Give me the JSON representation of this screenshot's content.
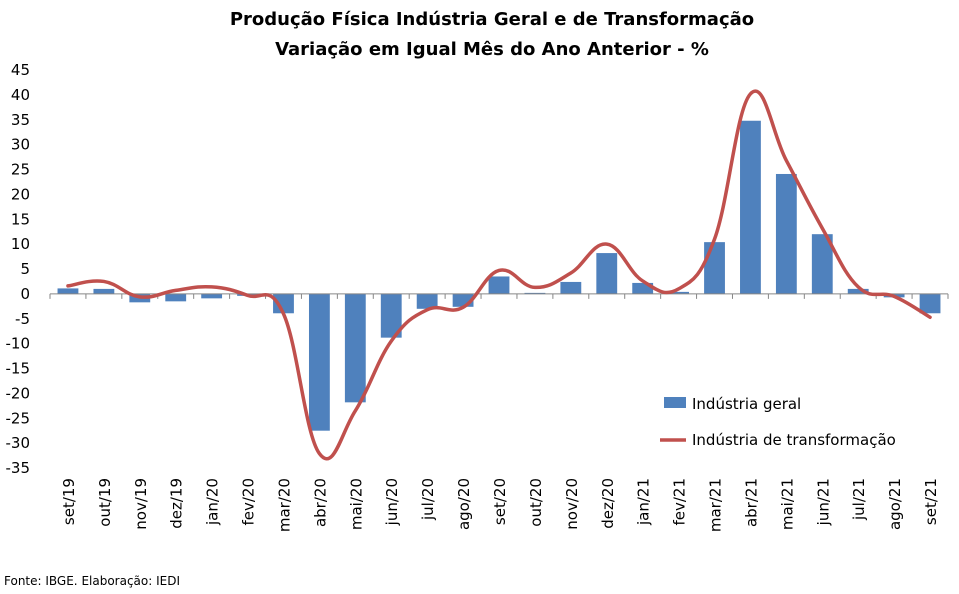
{
  "chart_data": {
    "type": "bar",
    "title": "Produção Física Indústria Geral e de Transformação",
    "subtitle": "Variação em Igual Mês do Ano Anterior - %",
    "categories": [
      "set/19",
      "out/19",
      "nov/19",
      "dez/19",
      "jan/20",
      "fev/20",
      "mar/20",
      "abr/20",
      "mai/20",
      "jun/20",
      "jul/20",
      "ago/20",
      "set/20",
      "out/20",
      "nov/20",
      "dez/20",
      "jan/21",
      "fev/21",
      "mar/21",
      "abr/21",
      "mai/21",
      "jun/21",
      "jul/21",
      "ago/21",
      "set/21"
    ],
    "series": [
      {
        "name": "Indústria geral",
        "kind": "bar",
        "color": "#4F81BD",
        "values": [
          1.1,
          1.0,
          -1.7,
          -1.5,
          -0.9,
          -0.4,
          -3.9,
          -27.5,
          -21.8,
          -8.8,
          -3.0,
          -2.6,
          3.5,
          0.2,
          2.4,
          8.2,
          2.2,
          0.4,
          10.4,
          34.8,
          24.1,
          12.0,
          1.0,
          -0.7,
          -3.9
        ]
      },
      {
        "name": "Indústria de transformação",
        "kind": "line",
        "color": "#C0504D",
        "values": [
          1.6,
          2.5,
          -0.6,
          0.7,
          1.4,
          -0.3,
          -4.0,
          -32.1,
          -23.5,
          -9.5,
          -3.2,
          -2.7,
          4.7,
          1.3,
          4.2,
          10.0,
          2.6,
          1.0,
          11.0,
          40.2,
          26.8,
          13.2,
          1.4,
          -0.5,
          -4.7
        ]
      }
    ],
    "ylim": [
      -35,
      45
    ],
    "yticks": [
      -35,
      -30,
      -25,
      -20,
      -15,
      -10,
      -5,
      0,
      5,
      10,
      15,
      20,
      25,
      30,
      35,
      40,
      45
    ],
    "grid": false,
    "legend_position": "right"
  },
  "source": "Fonte: IBGE. Elaboração: IEDI"
}
